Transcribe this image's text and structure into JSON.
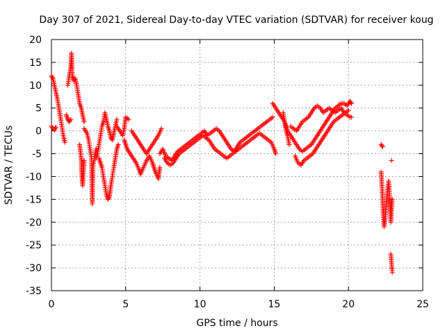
{
  "chart_data": {
    "type": "scatter",
    "title": "Day 307 of 2021, Sidereal Day-to-day VTEC variation (SDTVAR) for receiver koug",
    "xlabel": "GPS time / hours",
    "ylabel": "SDTVAR / TECUs",
    "xlim": [
      0,
      25
    ],
    "ylim": [
      -35,
      20
    ],
    "xticks": [
      0,
      5,
      10,
      15,
      20,
      25
    ],
    "yticks": [
      -35,
      -30,
      -25,
      -20,
      -15,
      -10,
      -5,
      0,
      5,
      10,
      15,
      20
    ],
    "grid": true,
    "marker": "+",
    "color": "#ff0000",
    "series": [
      {
        "name": "SDTVAR",
        "segments": [
          [
            [
              0.0,
              1.0
            ],
            [
              0.1,
              0.5
            ],
            [
              0.2,
              0.2
            ],
            [
              0.3,
              0.8
            ]
          ],
          [
            [
              0.0,
              12.0
            ],
            [
              0.1,
              11.5
            ],
            [
              0.2,
              10.0
            ],
            [
              0.3,
              8.5
            ],
            [
              0.4,
              7.0
            ],
            [
              0.5,
              5.0
            ],
            [
              0.6,
              3.0
            ],
            [
              0.7,
              1.0
            ],
            [
              0.8,
              -1.0
            ],
            [
              0.9,
              -2.5
            ]
          ],
          [
            [
              1.0,
              3.5
            ],
            [
              1.1,
              2.5
            ],
            [
              1.2,
              2.0
            ],
            [
              1.3,
              2.5
            ]
          ],
          [
            [
              1.1,
              10.0
            ],
            [
              1.2,
              12.0
            ],
            [
              1.3,
              14.0
            ],
            [
              1.35,
              17.0
            ],
            [
              1.4,
              12.0
            ],
            [
              1.5,
              11.0
            ],
            [
              1.6,
              11.5
            ],
            [
              1.7,
              10.0
            ],
            [
              1.8,
              8.0
            ],
            [
              1.9,
              6.0
            ],
            [
              2.0,
              5.0
            ],
            [
              2.1,
              3.5
            ],
            [
              2.2,
              2.0
            ]
          ],
          [
            [
              1.9,
              -3.0
            ],
            [
              2.0,
              -6.0
            ],
            [
              2.05,
              -10.0
            ],
            [
              2.1,
              -12.0
            ],
            [
              2.15,
              -9.0
            ],
            [
              2.2,
              -6.5
            ]
          ],
          [
            [
              2.2,
              0.5
            ],
            [
              2.4,
              -0.5
            ],
            [
              2.5,
              -2.0
            ],
            [
              2.6,
              -4.0
            ],
            [
              2.7,
              -6.0
            ],
            [
              2.75,
              -16.0
            ],
            [
              2.8,
              -7.5
            ],
            [
              2.9,
              -6.0
            ],
            [
              3.0,
              -4.0
            ]
          ],
          [
            [
              3.0,
              -6.0
            ],
            [
              3.1,
              -5.0
            ],
            [
              3.2,
              -3.0
            ],
            [
              3.3,
              -1.0
            ],
            [
              3.4,
              1.0
            ],
            [
              3.5,
              2.0
            ],
            [
              3.6,
              4.0
            ],
            [
              3.7,
              2.5
            ],
            [
              3.8,
              1.0
            ],
            [
              3.9,
              0.0
            ],
            [
              4.0,
              -1.5
            ],
            [
              4.1,
              -2.0
            ],
            [
              4.2,
              -0.5
            ],
            [
              4.3,
              1.0
            ],
            [
              4.4,
              2.5
            ]
          ],
          [
            [
              3.2,
              -6.0
            ],
            [
              3.4,
              -8.0
            ],
            [
              3.5,
              -10.0
            ],
            [
              3.6,
              -12.0
            ],
            [
              3.7,
              -14.0
            ],
            [
              3.8,
              -15.0
            ],
            [
              3.9,
              -14.5
            ],
            [
              4.0,
              -12.0
            ],
            [
              4.1,
              -10.0
            ],
            [
              4.2,
              -8.0
            ],
            [
              4.3,
              -6.0
            ],
            [
              4.4,
              -4.0
            ],
            [
              4.5,
              -3.0
            ]
          ],
          [
            [
              4.4,
              1.0
            ],
            [
              4.6,
              0.0
            ],
            [
              4.8,
              -1.0
            ],
            [
              4.9,
              0.5
            ],
            [
              5.0,
              3.0
            ],
            [
              5.2,
              2.5
            ]
          ],
          [
            [
              4.9,
              -2.0
            ],
            [
              5.1,
              -4.0
            ],
            [
              5.3,
              -5.0
            ],
            [
              5.5,
              -6.0
            ],
            [
              5.7,
              -7.0
            ],
            [
              5.9,
              -8.5
            ],
            [
              6.0,
              -9.5
            ],
            [
              6.2,
              -8.0
            ],
            [
              6.4,
              -6.5
            ],
            [
              6.6,
              -5.5
            ],
            [
              6.8,
              -7.0
            ],
            [
              7.0,
              -9.0
            ],
            [
              7.2,
              -10.5
            ],
            [
              7.3,
              -8.0
            ]
          ],
          [
            [
              5.4,
              0.0
            ],
            [
              5.6,
              -1.0
            ],
            [
              5.8,
              -2.0
            ],
            [
              6.0,
              -3.0
            ],
            [
              6.2,
              -4.0
            ],
            [
              6.4,
              -5.0
            ],
            [
              6.6,
              -4.0
            ],
            [
              6.8,
              -3.0
            ],
            [
              7.0,
              -2.0
            ],
            [
              7.2,
              -1.0
            ],
            [
              7.4,
              0.5
            ]
          ],
          [
            [
              7.3,
              -5.0
            ],
            [
              7.5,
              -4.0
            ],
            [
              7.7,
              -5.5
            ],
            [
              7.9,
              -6.0
            ],
            [
              8.1,
              -6.5
            ],
            [
              8.3,
              -5.5
            ],
            [
              8.5,
              -4.5
            ],
            [
              8.7,
              -4.0
            ],
            [
              8.9,
              -3.5
            ],
            [
              9.1,
              -3.0
            ],
            [
              9.3,
              -2.5
            ],
            [
              9.5,
              -2.0
            ],
            [
              9.7,
              -1.5
            ],
            [
              9.9,
              -1.0
            ],
            [
              10.1,
              -0.5
            ],
            [
              10.3,
              0.0
            ],
            [
              10.5,
              -1.0
            ],
            [
              10.7,
              -0.5
            ],
            [
              10.9,
              0.0
            ],
            [
              11.1,
              0.5
            ],
            [
              11.3,
              0.0
            ],
            [
              11.5,
              -1.0
            ],
            [
              11.7,
              -2.0
            ],
            [
              11.9,
              -3.0
            ],
            [
              12.1,
              -4.0
            ],
            [
              12.3,
              -4.5
            ],
            [
              12.5,
              -3.5
            ],
            [
              12.7,
              -2.5
            ],
            [
              12.9,
              -2.0
            ],
            [
              13.1,
              -1.5
            ],
            [
              13.3,
              -1.0
            ],
            [
              13.5,
              -0.5
            ],
            [
              13.7,
              0.0
            ],
            [
              13.9,
              0.5
            ],
            [
              14.1,
              1.0
            ],
            [
              14.3,
              1.5
            ],
            [
              14.5,
              2.0
            ],
            [
              14.7,
              2.5
            ],
            [
              14.9,
              3.0
            ]
          ],
          [
            [
              7.6,
              -6.0
            ],
            [
              7.8,
              -7.0
            ],
            [
              8.0,
              -7.5
            ],
            [
              8.2,
              -7.0
            ],
            [
              8.4,
              -6.0
            ],
            [
              8.6,
              -5.0
            ],
            [
              8.8,
              -4.5
            ],
            [
              9.0,
              -4.0
            ],
            [
              9.2,
              -3.5
            ],
            [
              9.4,
              -3.0
            ],
            [
              9.6,
              -2.5
            ],
            [
              9.8,
              -2.0
            ],
            [
              10.0,
              -1.5
            ],
            [
              10.2,
              -1.0
            ],
            [
              10.4,
              -1.5
            ],
            [
              10.6,
              -2.0
            ],
            [
              10.8,
              -3.0
            ],
            [
              11.0,
              -4.0
            ],
            [
              11.2,
              -4.5
            ],
            [
              11.4,
              -5.0
            ],
            [
              11.6,
              -5.5
            ],
            [
              11.8,
              -6.0
            ],
            [
              12.0,
              -5.5
            ],
            [
              12.2,
              -5.0
            ],
            [
              12.4,
              -4.5
            ],
            [
              12.6,
              -4.0
            ],
            [
              12.8,
              -3.5
            ],
            [
              13.0,
              -3.0
            ],
            [
              13.2,
              -2.5
            ],
            [
              13.4,
              -2.0
            ],
            [
              13.6,
              -1.5
            ],
            [
              13.8,
              -1.0
            ],
            [
              14.0,
              -0.5
            ],
            [
              14.2,
              -1.0
            ],
            [
              14.4,
              -1.5
            ],
            [
              14.6,
              -2.0
            ],
            [
              14.8,
              -2.5
            ],
            [
              15.0,
              -4.0
            ],
            [
              15.1,
              -5.0
            ]
          ],
          [
            [
              14.9,
              6.0
            ],
            [
              15.1,
              5.0
            ],
            [
              15.3,
              4.0
            ],
            [
              15.5,
              3.0
            ],
            [
              15.7,
              2.0
            ],
            [
              15.9,
              0.0
            ],
            [
              16.1,
              -1.0
            ],
            [
              16.3,
              -2.0
            ],
            [
              16.5,
              -3.0
            ],
            [
              16.7,
              -4.0
            ],
            [
              16.9,
              -4.5
            ],
            [
              17.1,
              -4.0
            ],
            [
              17.3,
              -3.5
            ],
            [
              17.5,
              -3.0
            ],
            [
              17.7,
              -2.0
            ],
            [
              17.9,
              -1.0
            ],
            [
              18.1,
              0.0
            ],
            [
              18.3,
              1.0
            ],
            [
              18.5,
              2.0
            ],
            [
              18.7,
              3.0
            ],
            [
              18.9,
              4.0
            ],
            [
              19.1,
              5.0
            ],
            [
              19.3,
              5.5
            ],
            [
              19.5,
              6.0
            ],
            [
              19.7,
              6.0
            ],
            [
              19.9,
              5.5
            ],
            [
              20.1,
              6.5
            ],
            [
              20.2,
              6.0
            ]
          ],
          [
            [
              15.6,
              4.0
            ],
            [
              15.7,
              2.0
            ],
            [
              15.8,
              0.0
            ],
            [
              15.9,
              -1.0
            ],
            [
              16.0,
              -3.0
            ]
          ],
          [
            [
              16.1,
              1.0
            ],
            [
              16.3,
              0.5
            ],
            [
              16.5,
              0.0
            ],
            [
              16.7,
              1.0
            ],
            [
              16.9,
              2.0
            ],
            [
              17.1,
              2.5
            ],
            [
              17.3,
              3.0
            ],
            [
              17.5,
              4.0
            ],
            [
              17.7,
              5.0
            ],
            [
              17.9,
              5.5
            ],
            [
              18.1,
              5.0
            ],
            [
              18.3,
              4.0
            ],
            [
              18.5,
              4.5
            ],
            [
              18.7,
              5.0
            ],
            [
              18.9,
              4.5
            ],
            [
              19.1,
              4.0
            ],
            [
              19.3,
              4.5
            ],
            [
              19.5,
              5.0
            ],
            [
              19.7,
              4.0
            ],
            [
              19.9,
              3.5
            ],
            [
              20.1,
              3.0
            ],
            [
              20.2,
              3.0
            ]
          ],
          [
            [
              16.4,
              -5.5
            ],
            [
              16.6,
              -7.0
            ],
            [
              16.8,
              -7.5
            ],
            [
              17.0,
              -6.5
            ],
            [
              17.2,
              -6.0
            ],
            [
              17.4,
              -5.5
            ],
            [
              17.6,
              -5.0
            ],
            [
              17.8,
              -4.0
            ],
            [
              18.0,
              -3.0
            ],
            [
              18.2,
              -2.0
            ],
            [
              18.4,
              -1.0
            ],
            [
              18.6,
              0.0
            ],
            [
              18.8,
              1.0
            ],
            [
              19.0,
              2.0
            ],
            [
              19.2,
              2.5
            ],
            [
              19.4,
              3.0
            ],
            [
              19.6,
              3.5
            ],
            [
              19.8,
              4.0
            ],
            [
              20.0,
              4.5
            ]
          ],
          [
            [
              22.2,
              -3.0
            ],
            [
              22.3,
              -3.5
            ]
          ],
          [
            [
              22.2,
              -9.0
            ],
            [
              22.25,
              -12.0
            ],
            [
              22.3,
              -15.0
            ],
            [
              22.35,
              -19.0
            ],
            [
              22.4,
              -21.0
            ],
            [
              22.5,
              -18.0
            ],
            [
              22.6,
              -14.0
            ],
            [
              22.7,
              -11.0
            ],
            [
              22.8,
              -16.0
            ],
            [
              22.85,
              -20.0
            ],
            [
              22.9,
              -17.0
            ],
            [
              22.95,
              -15.0
            ]
          ],
          [
            [
              22.9,
              -6.5
            ]
          ],
          [
            [
              22.85,
              -27.0
            ],
            [
              22.9,
              -29.0
            ],
            [
              22.95,
              -31.0
            ]
          ]
        ]
      }
    ]
  }
}
